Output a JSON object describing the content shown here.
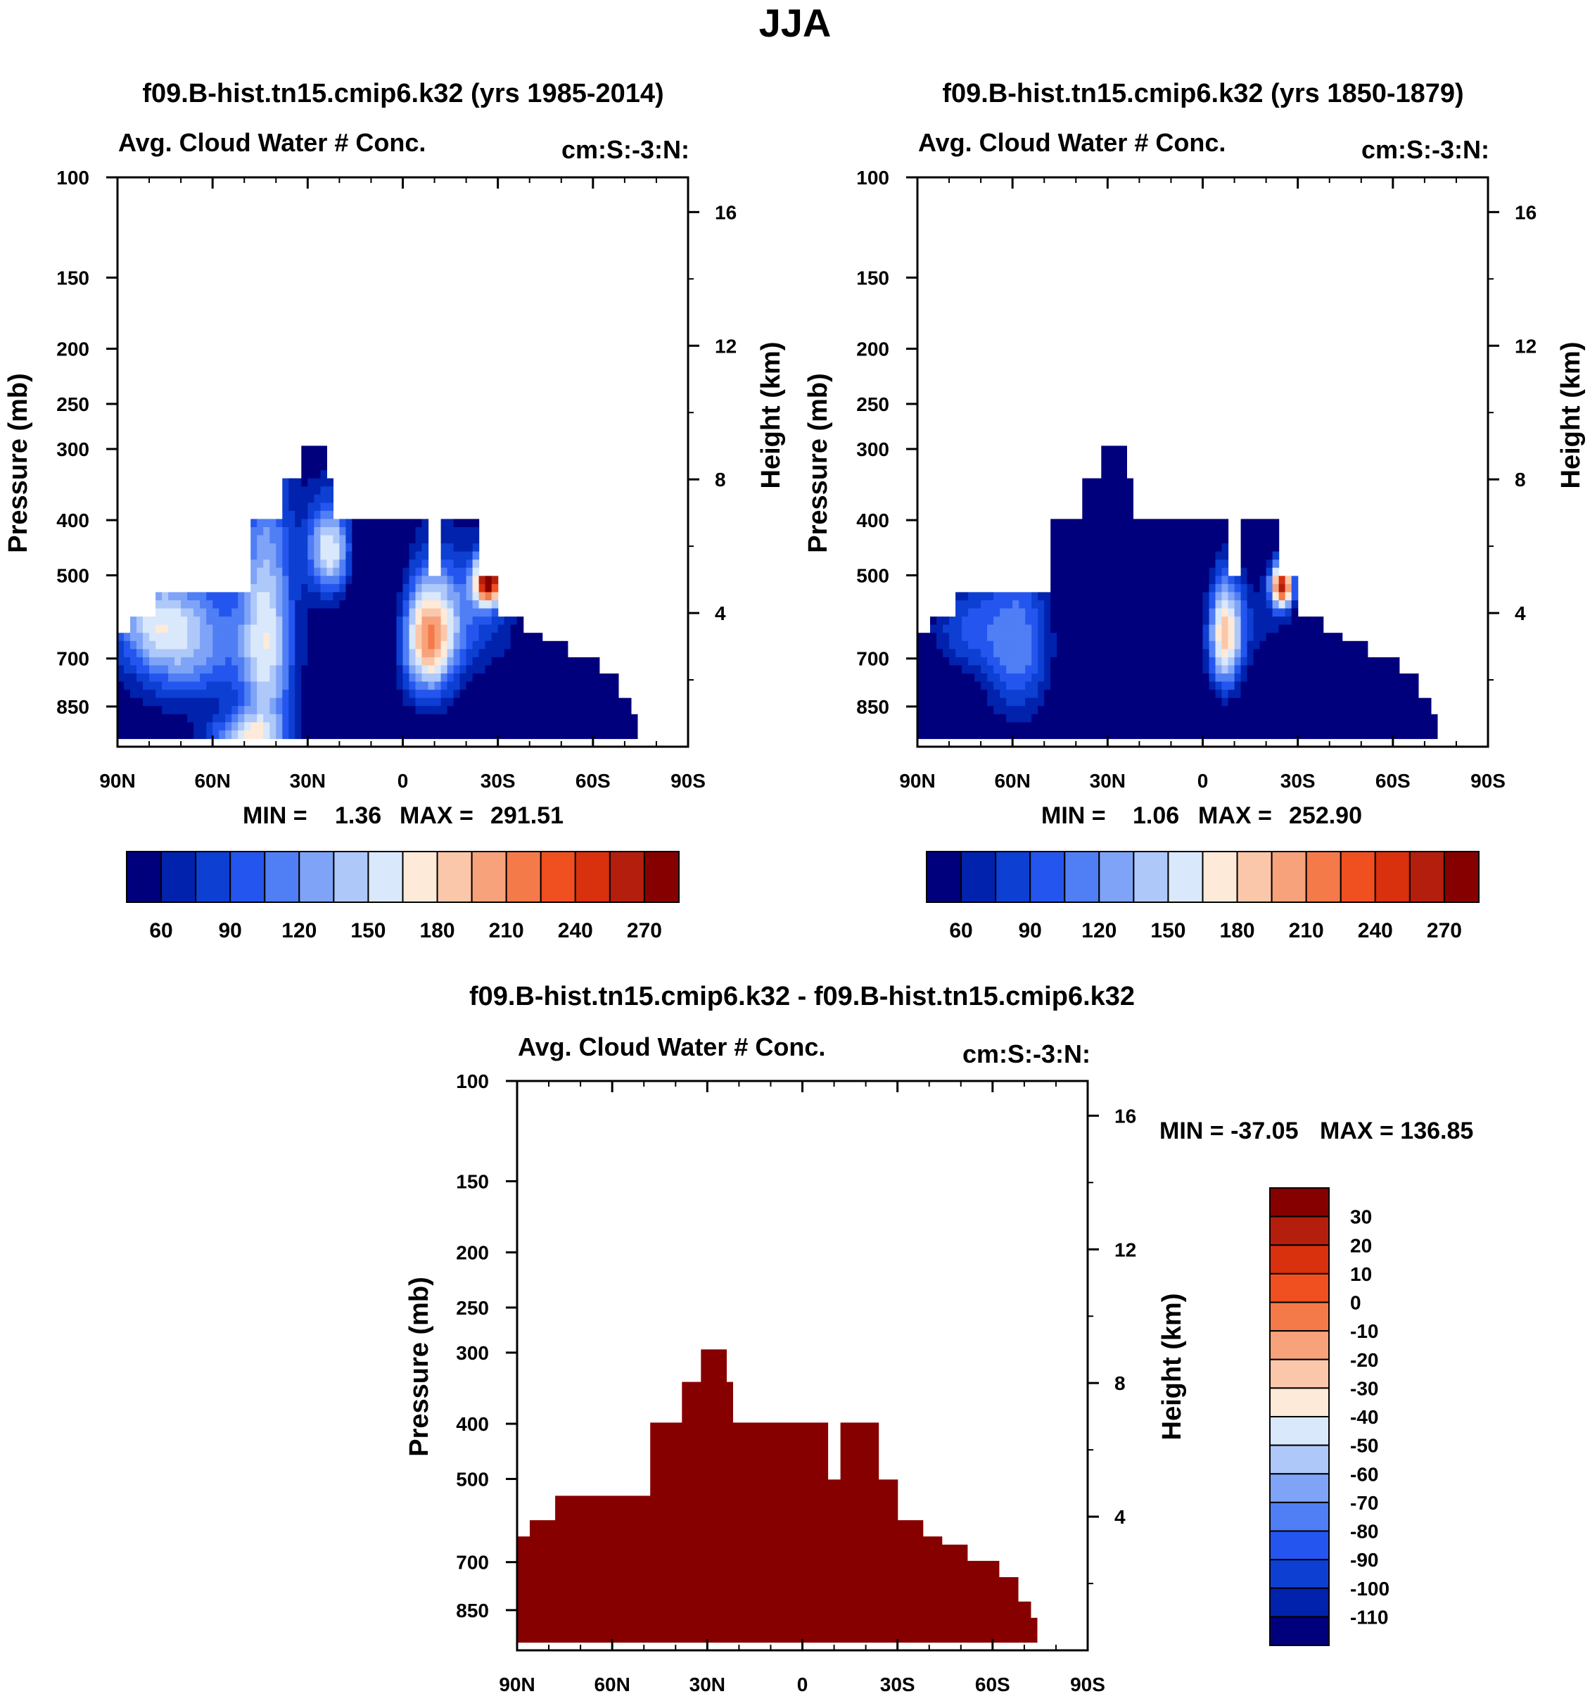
{
  "figure_title": "JJA",
  "colors": {
    "abs_scale": [
      "#00007d",
      "#0022ad",
      "#0c3fd2",
      "#2456ef",
      "#4f7ef5",
      "#7fa4f7",
      "#aec8fa",
      "#d9e8fb",
      "#fdead9",
      "#fbc7aa",
      "#f7a27b",
      "#f47a4a",
      "#f04f20",
      "#d9300e",
      "#b31f0c",
      "#870000"
    ],
    "diff_scale": [
      "#870000",
      "#b31f0c",
      "#d9300e",
      "#f04f20",
      "#f47a4a",
      "#f7a27b",
      "#fbc7aa",
      "#fdead9",
      "#d9e8fb",
      "#aec8fa",
      "#7fa4f7",
      "#4f7ef5",
      "#2456ef",
      "#0c3fd2",
      "#0022ad",
      "#00007d"
    ]
  },
  "chart_data": [
    {
      "type": "heatmap",
      "title": "f09.B-hist.tn15.cmip6.k32 (yrs 1985-2014)",
      "subtitle_left": "Avg. Cloud Water # Conc.",
      "subtitle_right": "cm:S:-3:N:",
      "ylabel": "Pressure (mb)",
      "ylabel_right": "Height (km)",
      "x_ticks": [
        "90N",
        "60N",
        "30N",
        "0",
        "30S",
        "60S",
        "90S"
      ],
      "x_values": [
        90,
        60,
        30,
        0,
        -30,
        -60,
        -90
      ],
      "y_ticks": [
        "100",
        "150",
        "200",
        "250",
        "300",
        "400",
        "500",
        "700",
        "850"
      ],
      "y_values": [
        100,
        150,
        200,
        250,
        300,
        400,
        500,
        700,
        850
      ],
      "y_range": [
        100,
        1000
      ],
      "height_ticks": [
        "16",
        "12",
        "8",
        "4"
      ],
      "height_values": [
        16,
        12,
        8,
        4
      ],
      "min_label": "MIN =",
      "min_value": "1.36",
      "max_label": "MAX =",
      "max_value": "291.51",
      "colorbar_labels": [
        "60",
        "90",
        "120",
        "150",
        "180",
        "210",
        "240",
        "270"
      ],
      "colorbar_levels": 16
    },
    {
      "type": "heatmap",
      "title": "f09.B-hist.tn15.cmip6.k32 (yrs 1850-1879)",
      "subtitle_left": "Avg. Cloud Water # Conc.",
      "subtitle_right": "cm:S:-3:N:",
      "ylabel": "Pressure (mb)",
      "ylabel_right": "Height (km)",
      "x_ticks": [
        "90N",
        "60N",
        "30N",
        "0",
        "30S",
        "60S",
        "90S"
      ],
      "x_values": [
        90,
        60,
        30,
        0,
        -30,
        -60,
        -90
      ],
      "y_ticks": [
        "100",
        "150",
        "200",
        "250",
        "300",
        "400",
        "500",
        "700",
        "850"
      ],
      "y_values": [
        100,
        150,
        200,
        250,
        300,
        400,
        500,
        700,
        850
      ],
      "y_range": [
        100,
        1000
      ],
      "height_ticks": [
        "16",
        "12",
        "8",
        "4"
      ],
      "height_values": [
        16,
        12,
        8,
        4
      ],
      "min_label": "MIN =",
      "min_value": "1.06",
      "max_label": "MAX =",
      "max_value": "252.90",
      "colorbar_labels": [
        "60",
        "90",
        "120",
        "150",
        "180",
        "210",
        "240",
        "270"
      ],
      "colorbar_levels": 16
    },
    {
      "type": "heatmap",
      "title": "f09.B-hist.tn15.cmip6.k32 - f09.B-hist.tn15.cmip6.k32",
      "subtitle_left": "Avg. Cloud Water # Conc.",
      "subtitle_right": "cm:S:-3:N:",
      "ylabel": "Pressure (mb)",
      "ylabel_right": "Height (km)",
      "x_ticks": [
        "90N",
        "60N",
        "30N",
        "0",
        "30S",
        "60S",
        "90S"
      ],
      "x_values": [
        90,
        60,
        30,
        0,
        -30,
        -60,
        -90
      ],
      "y_ticks": [
        "100",
        "150",
        "200",
        "250",
        "300",
        "400",
        "500",
        "700",
        "850"
      ],
      "y_values": [
        100,
        150,
        200,
        250,
        300,
        400,
        500,
        700,
        850
      ],
      "y_range": [
        100,
        1000
      ],
      "height_ticks": [
        "16",
        "12",
        "8",
        "4"
      ],
      "height_values": [
        16,
        12,
        8,
        4
      ],
      "min_label": "MIN = -37.05",
      "max_label": "MAX = 136.85",
      "colorbar_labels": [
        "30",
        "20",
        "10",
        "0",
        "-10",
        "-20",
        "-30",
        "-40",
        "-50",
        "-60",
        "-70",
        "-80",
        "-90",
        "-100",
        "-110"
      ],
      "colorbar_levels": 16
    }
  ]
}
